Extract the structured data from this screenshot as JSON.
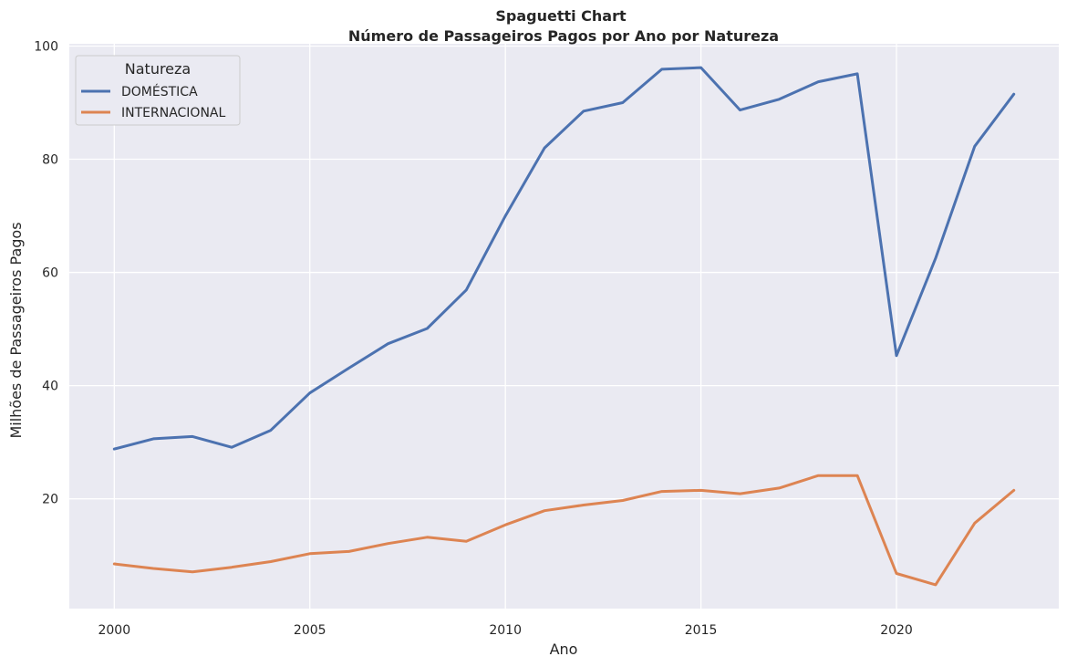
{
  "chart_data": {
    "type": "line",
    "title": "Spaguetti Chart",
    "subtitle": "Número de Passageiros Pagos por Ano por Natureza",
    "xlabel": "Ano",
    "ylabel": "Milhões de Passageiros Pagos",
    "x": [
      2000,
      2001,
      2002,
      2003,
      2004,
      2005,
      2006,
      2007,
      2008,
      2009,
      2010,
      2011,
      2012,
      2013,
      2014,
      2015,
      2016,
      2017,
      2018,
      2019,
      2020,
      2021,
      2022,
      2023
    ],
    "xticks": [
      "2000",
      "2005",
      "2010",
      "2015",
      "2020"
    ],
    "yticks": [
      "20",
      "40",
      "60",
      "80",
      "100"
    ],
    "xlim": [
      1998.85,
      2024.15
    ],
    "ylim": [
      0.6,
      100.4
    ],
    "grid": true,
    "legend": {
      "title": "Natureza",
      "placement": "top-left"
    },
    "series": [
      {
        "name": "DOMÉSTICA",
        "color": "#4c72b0",
        "values": [
          28.8,
          30.6,
          31.0,
          29.1,
          32.1,
          38.7,
          43.1,
          47.4,
          50.1,
          56.9,
          70.0,
          82.0,
          88.5,
          90.0,
          95.9,
          96.2,
          88.7,
          90.6,
          93.7,
          95.1,
          45.3,
          62.5,
          82.3,
          91.5
        ]
      },
      {
        "name": "INTERNACIONAL",
        "color": "#dd8452",
        "values": [
          8.5,
          7.7,
          7.1,
          7.9,
          8.9,
          10.3,
          10.7,
          12.1,
          13.2,
          12.5,
          15.4,
          17.9,
          18.9,
          19.7,
          21.3,
          21.5,
          20.9,
          21.9,
          24.1,
          24.1,
          6.8,
          4.8,
          15.7,
          21.5
        ]
      }
    ],
    "colors": {
      "background": "#eaeaf2",
      "grid": "#ffffff",
      "text": "#262626"
    }
  }
}
